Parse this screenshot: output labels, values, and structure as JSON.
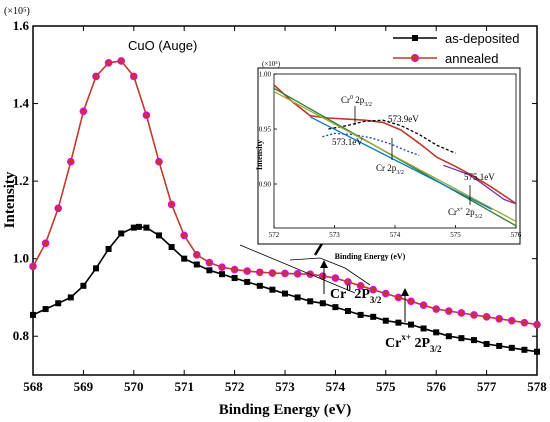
{
  "chart_data": {
    "type": "line",
    "xlabel": "Binding Energy (eV)",
    "ylabel": "Intensity",
    "y_scale_label": "(×10⁵)",
    "xlim": [
      568,
      578
    ],
    "ylim": [
      0.7,
      1.6
    ],
    "x_ticks": [
      "568",
      "569",
      "570",
      "571",
      "572",
      "573",
      "574",
      "575",
      "576",
      "577",
      "578"
    ],
    "y_ticks": [
      "0.8",
      "1.0",
      "1.2",
      "1.4",
      "1.6"
    ],
    "legend_position": "top-right",
    "series": [
      {
        "name": "as-deposited",
        "color": "#000000",
        "marker": "square",
        "x": [
          568,
          568.25,
          568.5,
          568.75,
          569,
          569.25,
          569.5,
          569.75,
          570,
          570.1,
          570.25,
          570.5,
          570.75,
          571,
          571.25,
          571.5,
          571.75,
          572,
          572.25,
          572.5,
          572.75,
          573,
          573.25,
          573.5,
          573.75,
          574,
          574.25,
          574.5,
          574.75,
          575,
          575.25,
          575.5,
          575.75,
          576,
          576.25,
          576.5,
          576.75,
          577,
          577.25,
          577.5,
          577.75,
          578
        ],
        "y": [
          0.855,
          0.87,
          0.885,
          0.9,
          0.93,
          0.975,
          1.025,
          1.065,
          1.08,
          1.082,
          1.08,
          1.06,
          1.03,
          1.0,
          0.985,
          0.97,
          0.96,
          0.95,
          0.94,
          0.93,
          0.92,
          0.91,
          0.9,
          0.89,
          0.885,
          0.875,
          0.865,
          0.855,
          0.85,
          0.84,
          0.835,
          0.83,
          0.82,
          0.81,
          0.8,
          0.795,
          0.79,
          0.78,
          0.775,
          0.77,
          0.765,
          0.76
        ]
      },
      {
        "name": "annealed",
        "color": "#c0392b",
        "marker": "circle",
        "x": [
          568,
          568.25,
          568.5,
          568.75,
          569,
          569.25,
          569.5,
          569.75,
          570,
          570.25,
          570.5,
          570.75,
          571,
          571.25,
          571.5,
          571.75,
          572,
          572.25,
          572.5,
          572.75,
          573,
          573.25,
          573.5,
          573.75,
          574,
          574.25,
          574.5,
          574.75,
          575,
          575.25,
          575.5,
          575.75,
          576,
          576.25,
          576.5,
          576.75,
          577,
          577.25,
          577.5,
          577.75,
          578
        ],
        "y": [
          0.98,
          1.04,
          1.13,
          1.25,
          1.38,
          1.47,
          1.505,
          1.51,
          1.47,
          1.37,
          1.25,
          1.14,
          1.06,
          1.01,
          0.99,
          0.978,
          0.972,
          0.968,
          0.965,
          0.963,
          0.962,
          0.961,
          0.96,
          0.955,
          0.95,
          0.94,
          0.93,
          0.92,
          0.91,
          0.9,
          0.89,
          0.88,
          0.87,
          0.865,
          0.86,
          0.855,
          0.85,
          0.845,
          0.84,
          0.835,
          0.83
        ]
      }
    ],
    "annotations": {
      "cuo": "CuO (Auge)",
      "cr0_main": "Cr",
      "cr0_main_sup": "0",
      "cr0_main_tail": " 2P",
      "cr0_main_sub": "3/2",
      "crx_main": "Cr",
      "crx_main_sup": "x+",
      "crx_main_tail": " 2P",
      "crx_main_sub": "3/2"
    },
    "inset": {
      "xlabel": "Binding Energy (eV)",
      "ylabel": "Intensity",
      "y_scale_label": "(×10⁵)",
      "xlim": [
        572,
        576
      ],
      "ylim": [
        0.86,
        1.0
      ],
      "x_ticks": [
        "572",
        "573",
        "574",
        "575",
        "576"
      ],
      "y_ticks": [
        "0.90",
        "0.95",
        "1.00"
      ],
      "labels": {
        "cr0": "Cr",
        "cr0_sup": "0",
        "cr0_tail": " 2p",
        "cr0_sub": "3/2",
        "p1": "573.9eV",
        "p2": "573.1eV",
        "cr": "Cr 2p",
        "cr_sub": "3/2",
        "p3": "575.1eV",
        "crx": "Cr",
        "crx_sup": "x+",
        "crx_tail": " 2p",
        "crx_sub": "3/2"
      },
      "series": [
        {
          "name": "",
          "color": "#c0392b",
          "x": [
            572,
            572.3,
            572.6,
            572.9,
            573.2,
            573.5,
            573.8,
            574.1,
            574.4,
            574.7,
            575,
            575.3,
            575.6,
            575.9,
            576
          ],
          "y": [
            0.99,
            0.975,
            0.962,
            0.96,
            0.959,
            0.958,
            0.956,
            0.949,
            0.937,
            0.924,
            0.916,
            0.907,
            0.897,
            0.886,
            0.882
          ]
        },
        {
          "name": "",
          "color": "#7b2fa0",
          "x": [
            574.8,
            575.0,
            575.2,
            575.4,
            575.6,
            575.8,
            576
          ],
          "y": [
            0.917,
            0.913,
            0.909,
            0.902,
            0.894,
            0.886,
            0.882
          ]
        },
        {
          "name": "",
          "color": "#1f3fd6",
          "dash": "2,2",
          "x": [
            572.8,
            573.0,
            573.3,
            573.6,
            573.9,
            574.2,
            574.4
          ],
          "y": [
            0.943,
            0.946,
            0.945,
            0.942,
            0.937,
            0.93,
            0.926
          ]
        },
        {
          "name": "",
          "color": "#000000",
          "dash": "3,2",
          "x": [
            572.9,
            573.2,
            573.5,
            573.8,
            574.1,
            574.4,
            574.7,
            575.0
          ],
          "y": [
            0.95,
            0.953,
            0.957,
            0.958,
            0.953,
            0.945,
            0.935,
            0.928
          ]
        },
        {
          "name": "",
          "color": "#2e7d32",
          "x": [
            572,
            576
          ],
          "y": [
            0.987,
            0.862
          ]
        },
        {
          "name": "",
          "color": "#9aa83a",
          "x": [
            572,
            576
          ],
          "y": [
            0.984,
            0.866
          ]
        },
        {
          "name": "",
          "color": "#0a7bbf",
          "x": [
            572.6,
            575.6
          ],
          "y": [
            0.961,
            0.877
          ]
        }
      ]
    }
  }
}
